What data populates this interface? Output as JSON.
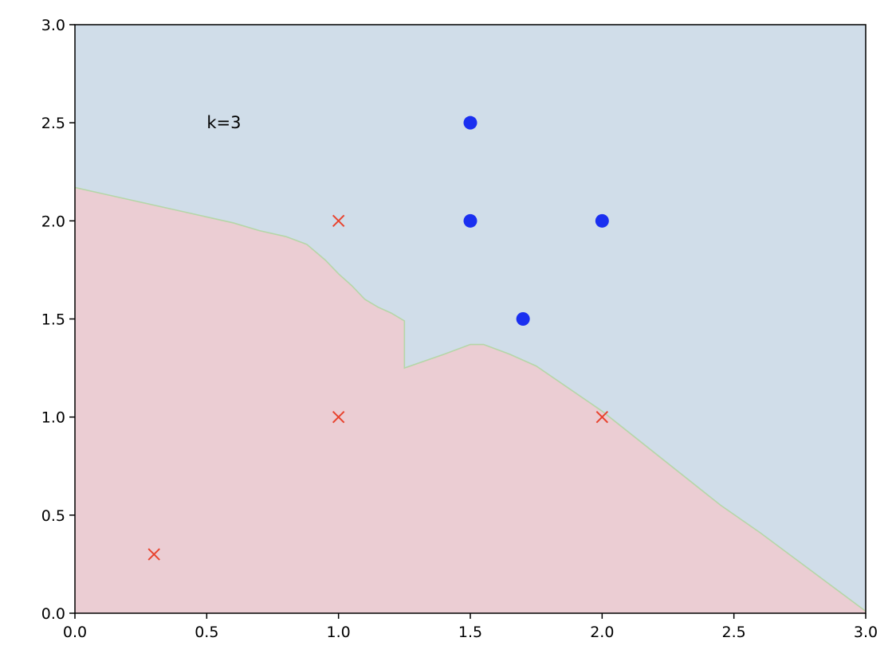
{
  "chart_data": {
    "type": "scatter",
    "title": "",
    "xlabel": "",
    "ylabel": "",
    "xlim": [
      0,
      3
    ],
    "ylim": [
      0,
      3
    ],
    "grid": false,
    "legend": "none",
    "x_ticks": [
      "0.0",
      "0.5",
      "1.0",
      "1.5",
      "2.0",
      "2.5",
      "3.0"
    ],
    "y_ticks": [
      "0.0",
      "0.5",
      "1.0",
      "1.5",
      "2.0",
      "2.5",
      "3.0"
    ],
    "annotation": {
      "text": "k=3",
      "x": 0.5,
      "y": 2.5
    },
    "series": [
      {
        "marker": "cross",
        "color": "#e8432e",
        "points": [
          [
            0.3,
            0.3
          ],
          [
            1.0,
            1.0
          ],
          [
            1.0,
            2.0
          ],
          [
            2.0,
            1.0
          ]
        ]
      },
      {
        "marker": "circle",
        "color": "#1a2ff0",
        "points": [
          [
            1.5,
            2.5
          ],
          [
            1.5,
            2.0
          ],
          [
            2.0,
            2.0
          ],
          [
            1.7,
            1.5
          ]
        ]
      }
    ],
    "regions": {
      "upper_color": "#d0dde9",
      "lower_color": "#ebcdd3",
      "boundary_color": "#b5d6a8",
      "boundary": [
        [
          0.0,
          2.17
        ],
        [
          0.1,
          2.14
        ],
        [
          0.2,
          2.11
        ],
        [
          0.3,
          2.08
        ],
        [
          0.4,
          2.05
        ],
        [
          0.5,
          2.02
        ],
        [
          0.6,
          1.99
        ],
        [
          0.7,
          1.95
        ],
        [
          0.8,
          1.92
        ],
        [
          0.88,
          1.88
        ],
        [
          0.95,
          1.8
        ],
        [
          1.0,
          1.73
        ],
        [
          1.05,
          1.67
        ],
        [
          1.1,
          1.6
        ],
        [
          1.15,
          1.56
        ],
        [
          1.2,
          1.53
        ],
        [
          1.25,
          1.49
        ],
        [
          1.25,
          1.25
        ],
        [
          1.4,
          1.32
        ],
        [
          1.5,
          1.37
        ],
        [
          1.55,
          1.37
        ],
        [
          1.65,
          1.32
        ],
        [
          1.75,
          1.26
        ],
        [
          2.0,
          1.03
        ],
        [
          2.45,
          0.55
        ],
        [
          2.6,
          0.41
        ],
        [
          3.0,
          0.01
        ]
      ]
    }
  }
}
